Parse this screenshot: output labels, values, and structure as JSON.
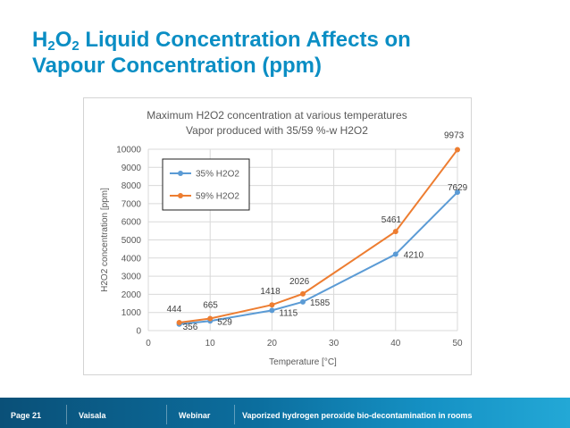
{
  "slide": {
    "title_parts": [
      "H",
      "2",
      "O",
      "2",
      " Liquid Concentration Affects on"
    ],
    "title_line2": "Vapour Concentration (ppm)"
  },
  "footer": {
    "page": "Page 21",
    "company": "Vaisala",
    "type": "Webinar",
    "topic": "Vaporized hydrogen peroxide bio-decontamination in rooms"
  },
  "chart_data": {
    "type": "line",
    "title": "Maximum H2O2 concentration at various temperatures",
    "subtitle": "Vapor produced with 35/59 %-w H2O2",
    "xlabel": "Temperature [°C]",
    "ylabel": "H2O2 concentration [ppm]",
    "xlim": [
      0,
      50
    ],
    "ylim": [
      0,
      10000
    ],
    "x_ticks": [
      "0",
      "10",
      "20",
      "30",
      "40",
      "50"
    ],
    "y_ticks": [
      "0",
      "1000",
      "2000",
      "3000",
      "4000",
      "5000",
      "6000",
      "7000",
      "8000",
      "9000",
      "10000"
    ],
    "grid": true,
    "legend_position": "top-left",
    "x": [
      5,
      10,
      20,
      25,
      40,
      50
    ],
    "series": [
      {
        "name": "35% H2O2",
        "color": "#5b9bd5",
        "values": [
          356,
          529,
          1115,
          1585,
          4210,
          7629
        ],
        "labels": [
          "356",
          "529",
          "1115",
          "1585",
          "4210",
          "7629"
        ]
      },
      {
        "name": "59% H2O2",
        "color": "#ed7d31",
        "values": [
          444,
          665,
          1418,
          2026,
          5461,
          9973
        ],
        "labels": [
          "444",
          "665",
          "1418",
          "2026",
          "5461",
          "9973"
        ]
      }
    ]
  }
}
